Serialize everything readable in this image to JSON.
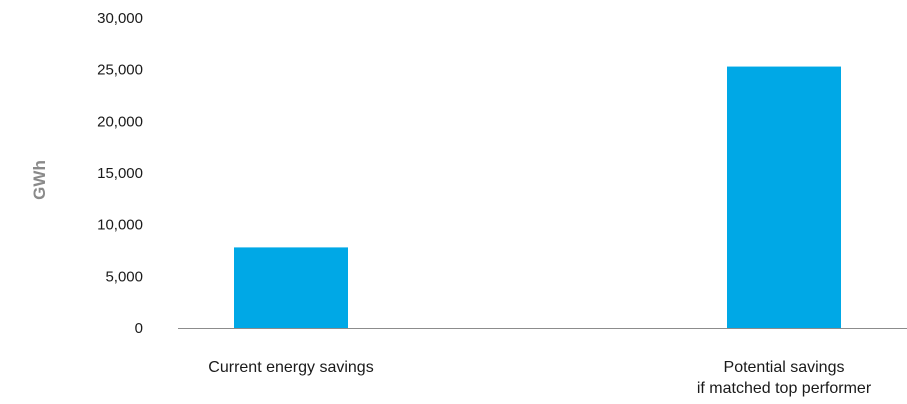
{
  "chart_data": {
    "type": "bar",
    "title": "",
    "xlabel": "",
    "ylabel": "GWh",
    "ylim": [
      0,
      30000
    ],
    "yticks": [
      0,
      5000,
      10000,
      15000,
      20000,
      25000,
      30000
    ],
    "ytick_labels": [
      "0",
      "5,000",
      "10,000",
      "15,000",
      "20,000",
      "25,000",
      "30,000"
    ],
    "categories": [
      [
        "Current energy savings"
      ],
      [
        "Potential savings",
        "if matched top performer"
      ]
    ],
    "values": [
      7800,
      25300
    ],
    "grid": false,
    "legend": "none",
    "bar_color": "#00a8e6",
    "axis_color": "#8c8c8c"
  }
}
